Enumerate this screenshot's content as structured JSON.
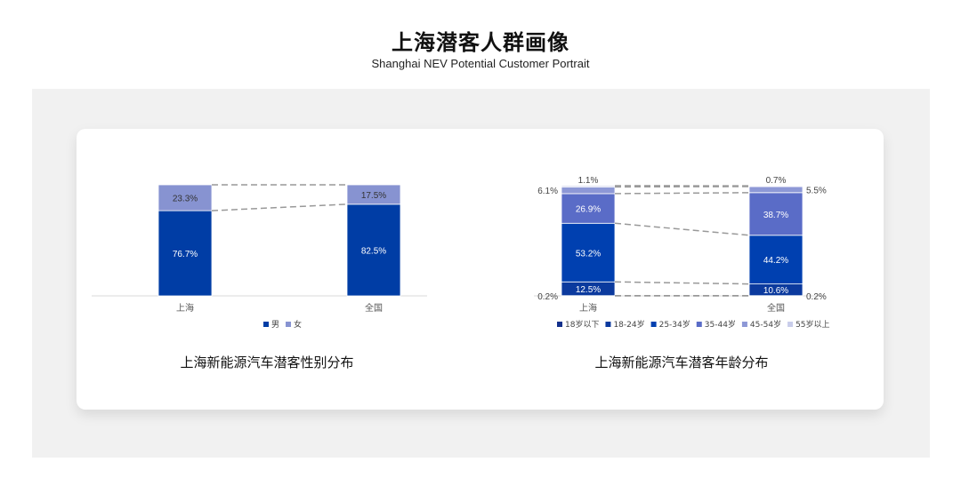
{
  "header": {
    "title": "上海潜客人群画像",
    "subtitle": "Shanghai NEV Potential Customer Portrait"
  },
  "chart_data": [
    {
      "type": "bar",
      "stacked": true,
      "percent": true,
      "title": "上海新能源汽车潜客性别分布",
      "categories": [
        "上海",
        "全国"
      ],
      "series": [
        {
          "name": "男",
          "values": [
            76.7,
            82.5
          ],
          "color": "#003da5",
          "label_color": "#ffffff"
        },
        {
          "name": "女",
          "values": [
            23.3,
            17.5
          ],
          "color": "#8793d1",
          "label_color": "#333333"
        }
      ],
      "ylim": [
        0,
        100
      ],
      "grid": false,
      "legend": "bottom"
    },
    {
      "type": "bar",
      "stacked": true,
      "percent": true,
      "title": "上海新能源汽车潜客年龄分布",
      "categories": [
        "上海",
        "全国"
      ],
      "series": [
        {
          "name": "18岁以下",
          "values": [
            0.2,
            0.2
          ],
          "color": "#14318c",
          "label_color": "#444444"
        },
        {
          "name": "18-24岁",
          "values": [
            12.5,
            10.6
          ],
          "color": "#0b3a9e",
          "label_color": "#ffffff"
        },
        {
          "name": "25-34岁",
          "values": [
            53.2,
            44.2
          ],
          "color": "#0040b0",
          "label_color": "#ffffff"
        },
        {
          "name": "35-44岁",
          "values": [
            26.9,
            38.7
          ],
          "color": "#5a6cc7",
          "label_color": "#ffffff"
        },
        {
          "name": "45-54岁",
          "values": [
            6.1,
            5.5
          ],
          "color": "#8d98d6",
          "label_color": "#444444"
        },
        {
          "name": "55岁以上",
          "values": [
            1.1,
            0.7
          ],
          "color": "#c9cdea",
          "label_color": "#444444"
        }
      ],
      "ylim": [
        0,
        100
      ],
      "grid": false,
      "legend": "bottom"
    }
  ]
}
